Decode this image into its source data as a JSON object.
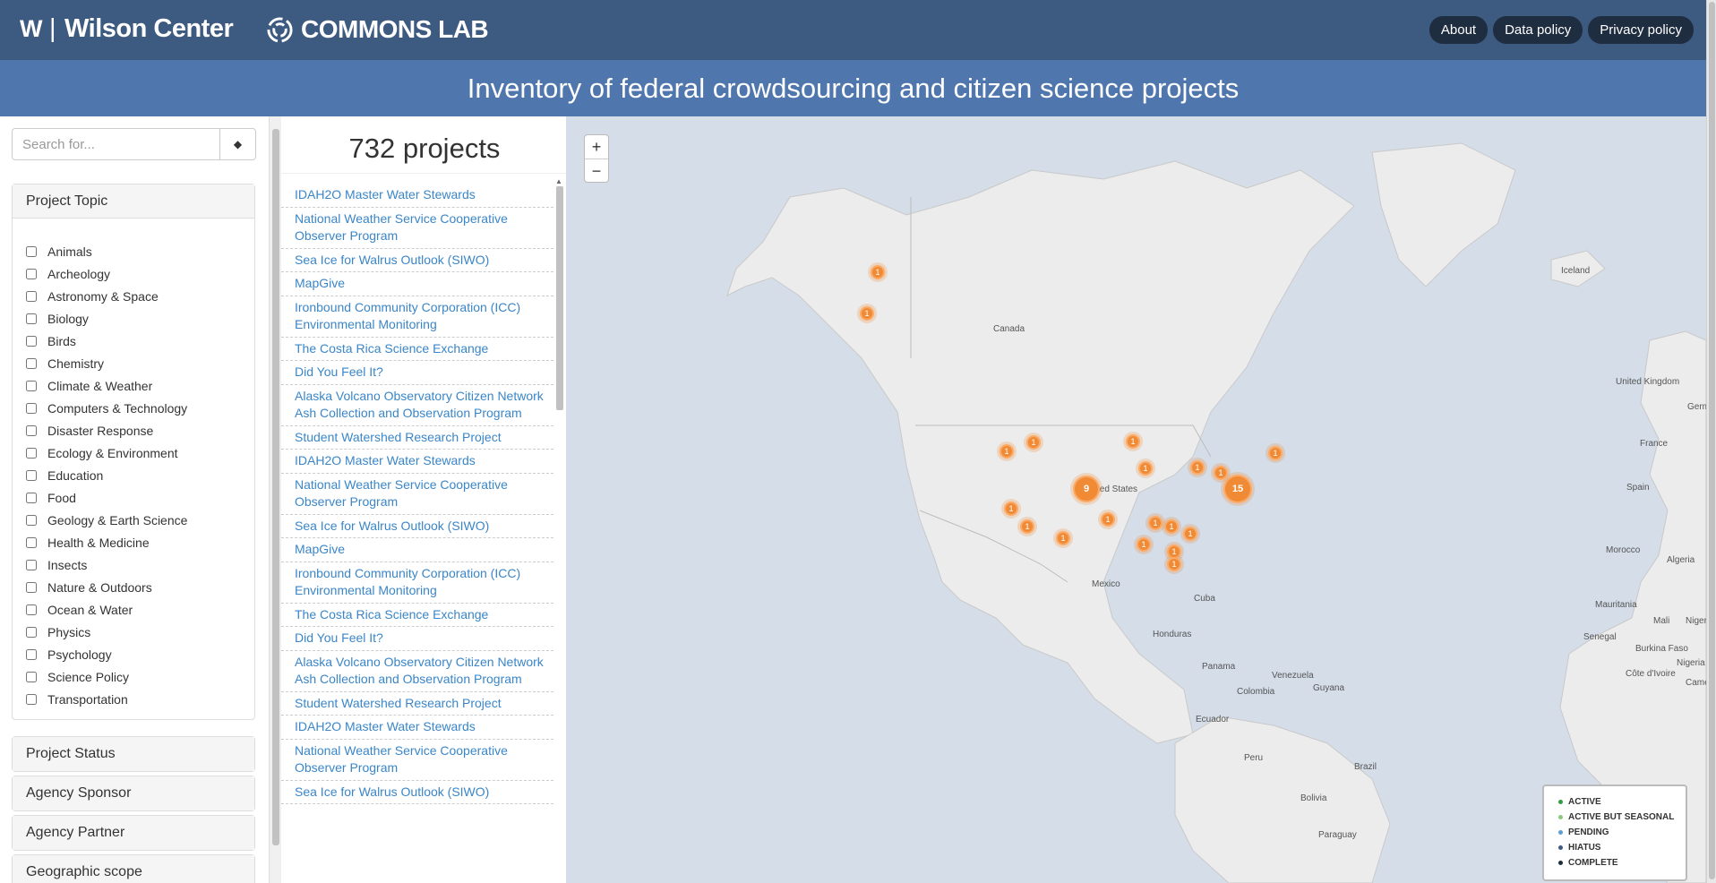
{
  "header": {
    "wilson_mark": "W",
    "wilson_sep": "|",
    "wilson_name": "Wilson Center",
    "commons_name": "COMMONS LAB",
    "nav": [
      "About",
      "Data policy",
      "Privacy policy"
    ]
  },
  "page_title": "Inventory of federal crowdsourcing and citizen science projects",
  "search": {
    "placeholder": "Search for...",
    "button_icon": "diamond-icon"
  },
  "filters": {
    "topic_title": "Project Topic",
    "topics": [
      "Animals",
      "Archeology",
      "Astronomy & Space",
      "Biology",
      "Birds",
      "Chemistry",
      "Climate & Weather",
      "Computers & Technology",
      "Disaster Response",
      "Ecology & Environment",
      "Education",
      "Food",
      "Geology & Earth Science",
      "Health & Medicine",
      "Insects",
      "Nature & Outdoors",
      "Ocean & Water",
      "Physics",
      "Psychology",
      "Science Policy",
      "Transportation"
    ],
    "collapsed_panels": [
      "Project Status",
      "Agency Sponsor",
      "Agency Partner",
      "Geographic scope"
    ]
  },
  "projects": {
    "count_label": "732 projects",
    "items": [
      "IDAH2O Master Water Stewards",
      "National Weather Service Cooperative Observer Program",
      "Sea Ice for Walrus Outlook (SIWO)",
      "MapGive",
      "Ironbound Community Corporation (ICC) Environmental Monitoring",
      "The Costa Rica Science Exchange",
      "Did You Feel It?",
      "Alaska Volcano Observatory Citizen Network Ash Collection and Observation Program",
      "Student Watershed Research Project",
      "IDAH2O Master Water Stewards",
      "National Weather Service Cooperative Observer Program",
      "Sea Ice for Walrus Outlook (SIWO)",
      "MapGive",
      "Ironbound Community Corporation (ICC) Environmental Monitoring",
      "The Costa Rica Science Exchange",
      "Did You Feel It?",
      "Alaska Volcano Observatory Citizen Network Ash Collection and Observation Program",
      "Student Watershed Research Project",
      "IDAH2O Master Water Stewards",
      "National Weather Service Cooperative Observer Program",
      "Sea Ice for Walrus Outlook (SIWO)"
    ]
  },
  "map": {
    "zoom_in": "+",
    "zoom_out": "−",
    "labels": {
      "canada": "Canada",
      "united_states": "United States",
      "mexico": "Mexico",
      "cuba": "Cuba",
      "honduras": "Honduras",
      "panama": "Panama",
      "venezuela": "Venezuela",
      "guyana": "Guyana",
      "colombia": "Colombia",
      "ecuador": "Ecuador",
      "peru": "Peru",
      "brazil": "Brazil",
      "bolivia": "Bolivia",
      "paraguay": "Paraguay",
      "iceland": "Iceland",
      "united_kingdom": "United Kingdom",
      "france": "France",
      "spain": "Spain",
      "germany": "Germany",
      "morocco": "Morocco",
      "algeria": "Algeria",
      "mauritania": "Mauritania",
      "mali": "Mali",
      "niger": "Niger",
      "senegal": "Senegal",
      "burkina_faso": "Burkina Faso",
      "nigeria": "Nigeria",
      "cote_divoire": "Côte d'Ivoire",
      "cameroon": "Camero"
    },
    "clusters": {
      "alaska_1": "1",
      "alaska_2": "1",
      "west_1": "1",
      "west_2": "1",
      "central_big": "9",
      "east_big": "15",
      "ca_1": "1",
      "ca_2": "1",
      "sw_1": "1",
      "mw_1": "1",
      "mw_2": "1",
      "ne_1": "1",
      "ne_2": "1",
      "ne_3": "1",
      "se_1": "1",
      "se_2": "1",
      "se_3": "1",
      "se_4": "1",
      "fl_1": "1",
      "fl_2": "1",
      "tx_1": "1"
    },
    "legend": [
      {
        "label": "ACTIVE",
        "color": "#2e9e3e"
      },
      {
        "label": "ACTIVE BUT SEASONAL",
        "color": "#8cc97a"
      },
      {
        "label": "PENDING",
        "color": "#5aa0d6"
      },
      {
        "label": "HIATUS",
        "color": "#3d5a80"
      },
      {
        "label": "COMPLETE",
        "color": "#1f2d40"
      }
    ]
  }
}
